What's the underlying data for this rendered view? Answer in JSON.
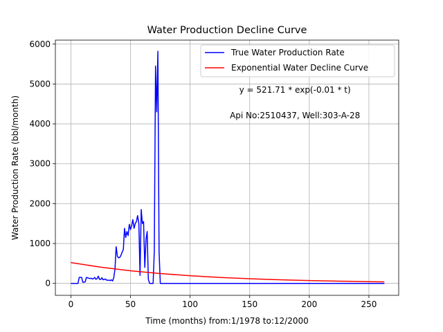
{
  "chart_data": {
    "type": "line",
    "title": "Water Production Decline Curve",
    "xlabel": "Time (months) from:1/1978 to:12/2000",
    "ylabel": "Water Production Rate (bbl/month)",
    "xlim": [
      -13,
      275
    ],
    "ylim": [
      -300,
      6100
    ],
    "xticks": [
      0,
      50,
      100,
      150,
      200,
      250
    ],
    "yticks": [
      0,
      1000,
      2000,
      3000,
      4000,
      5000,
      6000
    ],
    "grid": true,
    "legend_position": "top-right",
    "annotations": [
      {
        "text": "y = 521.71 * exp(-0.01 * t)",
        "x": 188,
        "y": 4780
      },
      {
        "text": "Api No:2510437, Well:303-A-28",
        "x": 188,
        "y": 4140
      }
    ],
    "series": [
      {
        "name": "True Water Production Rate",
        "color": "#0000ff",
        "x": [
          0,
          1,
          2,
          3,
          4,
          5,
          6,
          7,
          8,
          9,
          10,
          11,
          12,
          13,
          14,
          15,
          16,
          17,
          18,
          19,
          20,
          21,
          22,
          23,
          24,
          25,
          26,
          27,
          28,
          29,
          30,
          31,
          32,
          33,
          34,
          35,
          36,
          37,
          38,
          39,
          40,
          41,
          42,
          43,
          44,
          45,
          46,
          47,
          48,
          49,
          50,
          51,
          52,
          53,
          54,
          55,
          56,
          57,
          58,
          59,
          60,
          61,
          62,
          63,
          64,
          65,
          66,
          67,
          68,
          69,
          70,
          71,
          72,
          73,
          74,
          75,
          76,
          77,
          78,
          79,
          80,
          263
        ],
        "y": [
          0,
          0,
          0,
          0,
          0,
          0,
          0,
          150,
          150,
          150,
          30,
          30,
          40,
          150,
          140,
          130,
          120,
          130,
          110,
          120,
          150,
          100,
          120,
          180,
          100,
          100,
          140,
          90,
          100,
          110,
          80,
          80,
          80,
          70,
          90,
          60,
          150,
          350,
          920,
          680,
          640,
          650,
          700,
          780,
          850,
          1380,
          1150,
          1300,
          1200,
          1480,
          1350,
          1450,
          1600,
          1380,
          1500,
          1550,
          1700,
          1500,
          200,
          1850,
          1500,
          1550,
          400,
          1100,
          1300,
          100,
          0,
          0,
          0,
          0,
          800,
          5450,
          4300,
          5820,
          800,
          0,
          0,
          0,
          0,
          0,
          0,
          0
        ],
        "x_offset_note": ""
      },
      {
        "name": "Exponential Water Decline Curve",
        "color": "#ff0000",
        "x": [
          0,
          25,
          50,
          75,
          100,
          125,
          150,
          175,
          200,
          225,
          250,
          263
        ],
        "y": [
          521.71,
          406.3,
          316.4,
          246.5,
          192.0,
          149.5,
          116.4,
          90.7,
          70.6,
          55.0,
          42.8,
          37.5
        ]
      }
    ]
  }
}
